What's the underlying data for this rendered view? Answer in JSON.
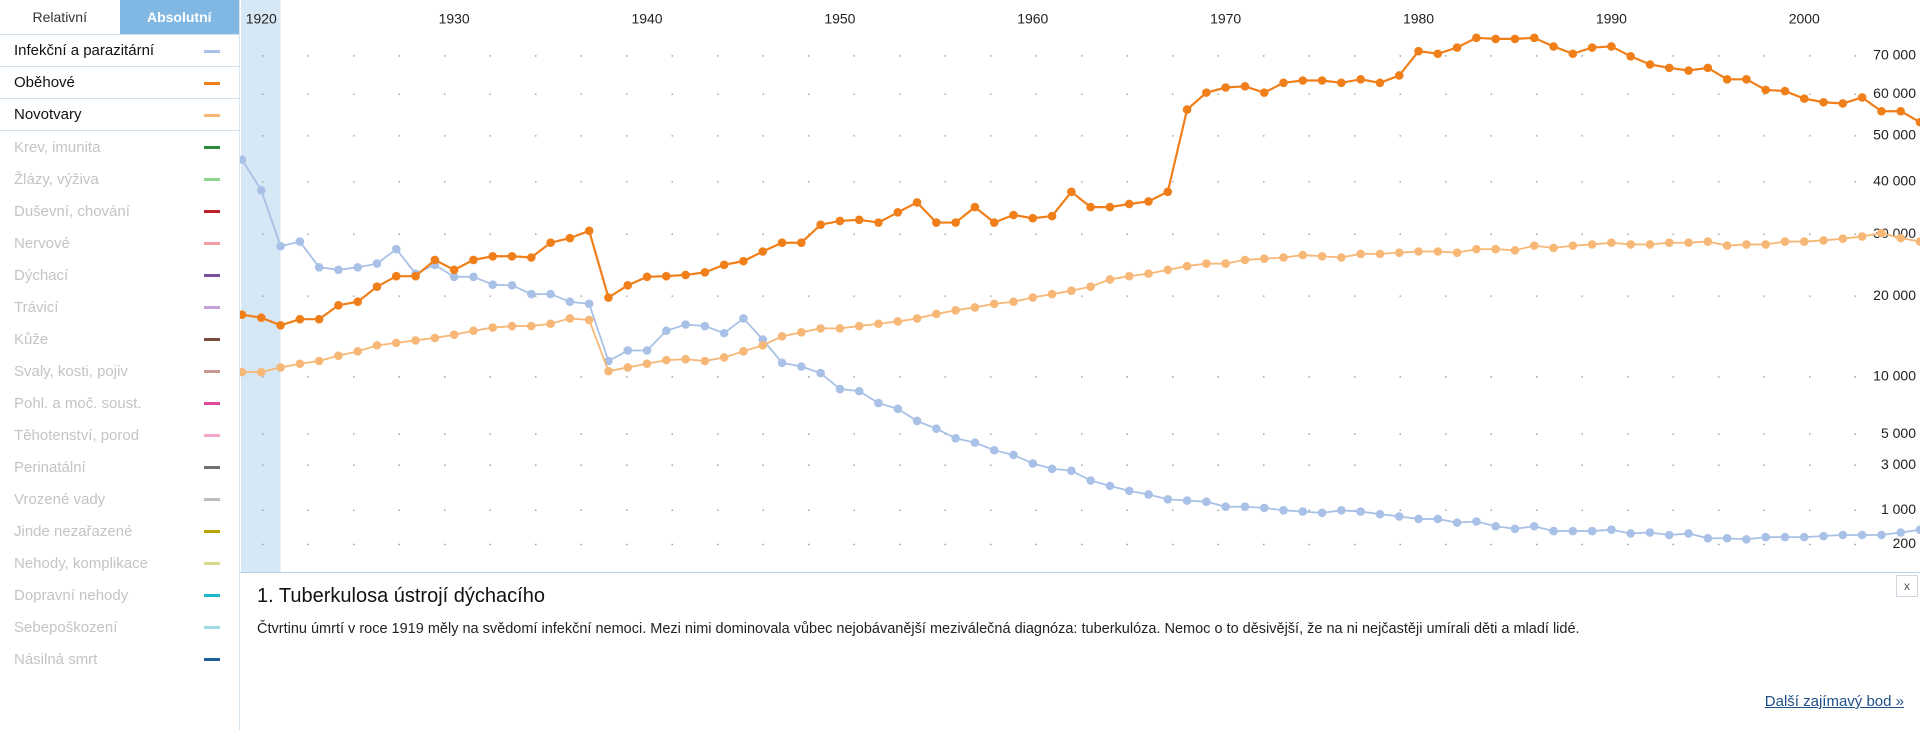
{
  "toggle": {
    "options": [
      "Relativní",
      "Absolutní"
    ],
    "active": 1
  },
  "chart_data": {
    "type": "line",
    "yscale": "sqrt",
    "highlight": [
      1919,
      1921
    ],
    "x": [
      1919,
      1920,
      1921,
      1922,
      1923,
      1924,
      1925,
      1926,
      1927,
      1928,
      1929,
      1930,
      1931,
      1932,
      1933,
      1934,
      1935,
      1936,
      1937,
      1938,
      1939,
      1940,
      1941,
      1942,
      1943,
      1944,
      1945,
      1946,
      1947,
      1948,
      1949,
      1950,
      1951,
      1952,
      1953,
      1954,
      1955,
      1956,
      1957,
      1958,
      1959,
      1960,
      1961,
      1962,
      1963,
      1964,
      1965,
      1966,
      1967,
      1968,
      1969,
      1970,
      1971,
      1972,
      1973,
      1974,
      1975,
      1976,
      1977,
      1978,
      1979,
      1980,
      1981,
      1982,
      1983,
      1984,
      1985,
      1986,
      1987,
      1988,
      1989,
      1990,
      1991,
      1992,
      1993,
      1994,
      1995,
      1996,
      1997,
      1998,
      1999,
      2000,
      2001,
      2002,
      2003,
      2004,
      2005,
      2006
    ],
    "xlim": [
      1919,
      2006
    ],
    "xticks": [
      1920,
      1930,
      1940,
      1950,
      1960,
      1970,
      1980,
      1990,
      2000
    ],
    "ylim": [
      0,
      86000
    ],
    "yticks": [
      200,
      {
        "value": 1000,
        "label": "1 000"
      },
      {
        "value": 3000,
        "label": "3 000"
      },
      {
        "value": 5000,
        "label": "5 000"
      },
      {
        "value": 10000,
        "label": "10 000"
      },
      {
        "value": 20000,
        "label": "20 000"
      },
      {
        "value": 30000,
        "label": "30 000"
      },
      {
        "value": 40000,
        "label": "40 000"
      },
      {
        "value": 50000,
        "label": "50 000"
      },
      {
        "value": 60000,
        "label": "60 000"
      },
      {
        "value": 70000,
        "label": "70 000"
      }
    ],
    "grid": true,
    "series": [
      {
        "name": "Infekční a parazitární",
        "color": "#a9c1e6",
        "values": [
          44700,
          38300,
          27900,
          28700,
          24400,
          24000,
          24400,
          25000,
          27400,
          23400,
          24800,
          22900,
          22900,
          21700,
          21600,
          20300,
          20300,
          19200,
          18900,
          11700,
          12900,
          12900,
          15300,
          16100,
          15900,
          15000,
          16900,
          14200,
          11500,
          11100,
          10400,
          8800,
          8600,
          7500,
          7000,
          6000,
          5400,
          4700,
          4400,
          3900,
          3600,
          3100,
          2800,
          2700,
          2200,
          1950,
          1730,
          1580,
          1390,
          1340,
          1300,
          1120,
          1120,
          1080,
          1000,
          960,
          920,
          1000,
          960,
          880,
          810,
          740,
          740,
          640,
          670,
          550,
          490,
          550,
          440,
          440,
          440,
          470,
          390,
          410,
          360,
          390,
          300,
          300,
          280,
          320,
          320,
          320,
          340,
          360,
          360,
          360,
          410,
          470
        ]
      },
      {
        "name": "Oběhové",
        "color": "#f07f1a",
        "values": [
          17400,
          17000,
          16000,
          16800,
          16800,
          18700,
          19200,
          21400,
          23000,
          23000,
          25600,
          24000,
          25600,
          26200,
          26200,
          26000,
          28500,
          29300,
          30600,
          19800,
          21600,
          22900,
          23000,
          23200,
          23600,
          24800,
          25400,
          27000,
          28500,
          28500,
          31700,
          32400,
          32600,
          32100,
          34000,
          35900,
          32100,
          32100,
          35000,
          32100,
          33500,
          32900,
          33300,
          38000,
          35000,
          35000,
          35600,
          36100,
          38000,
          56200,
          60400,
          61700,
          62000,
          60400,
          62900,
          63500,
          63500,
          62900,
          63800,
          62900,
          64800,
          71300,
          70600,
          72300,
          75000,
          74700,
          74700,
          75000,
          72600,
          70600,
          72300,
          72600,
          69900,
          67700,
          66800,
          66100,
          66800,
          63800,
          63800,
          61100,
          60800,
          58900,
          58000,
          57700,
          59200,
          55800,
          55800,
          53200
        ]
      },
      {
        "name": "Novotvary",
        "color": "#f7b776",
        "values": [
          10500,
          10500,
          11000,
          11400,
          11700,
          12300,
          12800,
          13500,
          13800,
          14100,
          14400,
          14800,
          15300,
          15700,
          15900,
          15900,
          16200,
          16900,
          16700,
          10600,
          11000,
          11400,
          11800,
          11900,
          11700,
          12100,
          12800,
          13500,
          14600,
          15100,
          15600,
          15600,
          15900,
          16200,
          16500,
          16900,
          17500,
          18000,
          18400,
          18900,
          19200,
          19800,
          20300,
          20800,
          21400,
          22500,
          23000,
          23400,
          24000,
          24600,
          25000,
          25000,
          25600,
          25800,
          26000,
          26400,
          26200,
          26000,
          26600,
          26600,
          26800,
          27000,
          27000,
          26800,
          27400,
          27400,
          27200,
          28000,
          27600,
          28000,
          28200,
          28500,
          28200,
          28200,
          28500,
          28500,
          28700,
          28000,
          28200,
          28200,
          28700,
          28700,
          28900,
          29200,
          29600,
          30200,
          29300,
          28700
        ]
      }
    ]
  },
  "inactive_categories": [
    {
      "name": "Krev, imunita",
      "color": "#2e8b3a"
    },
    {
      "name": "Žlázy, výživa",
      "color": "#8fd48f"
    },
    {
      "name": "Duševní, chování",
      "color": "#c0202a"
    },
    {
      "name": "Nervové",
      "color": "#f29ca6"
    },
    {
      "name": "Dýchací",
      "color": "#7a4fa0"
    },
    {
      "name": "Trávicí",
      "color": "#c4a3d6"
    },
    {
      "name": "Kůže",
      "color": "#7a4a3a"
    },
    {
      "name": "Svaly, kosti, pojiv",
      "color": "#c89a94"
    },
    {
      "name": "Pohl. a moč. soust.",
      "color": "#e0489a"
    },
    {
      "name": "Těhotenství, porod",
      "color": "#f4a6c8"
    },
    {
      "name": "Perinatální",
      "color": "#707070"
    },
    {
      "name": "Vrozené vady",
      "color": "#bcbcbc"
    },
    {
      "name": "Jinde nezařazené",
      "color": "#b8a400"
    },
    {
      "name": "Nehody, komplikace",
      "color": "#d8d88a"
    },
    {
      "name": "Dopravní nehody",
      "color": "#17b8cc"
    },
    {
      "name": "Sebepoškození",
      "color": "#9fdbe5"
    },
    {
      "name": "Násilná smrt",
      "color": "#1f5f9a"
    }
  ],
  "info_panel": {
    "title": "1. Tuberkulosa ústrojí dýchacího",
    "text": "Čtvrtinu úmrtí v roce 1919 měly na svědomí infekční nemoci. Mezi nimi dominovala vůbec nejobávanější meziválečná diagnóza: tuberkulóza. Nemoc o to děsivější, že na ni nejčastěji umírali děti a mladí lidé.",
    "link": "Další zajímavý bod »",
    "close": "x"
  }
}
